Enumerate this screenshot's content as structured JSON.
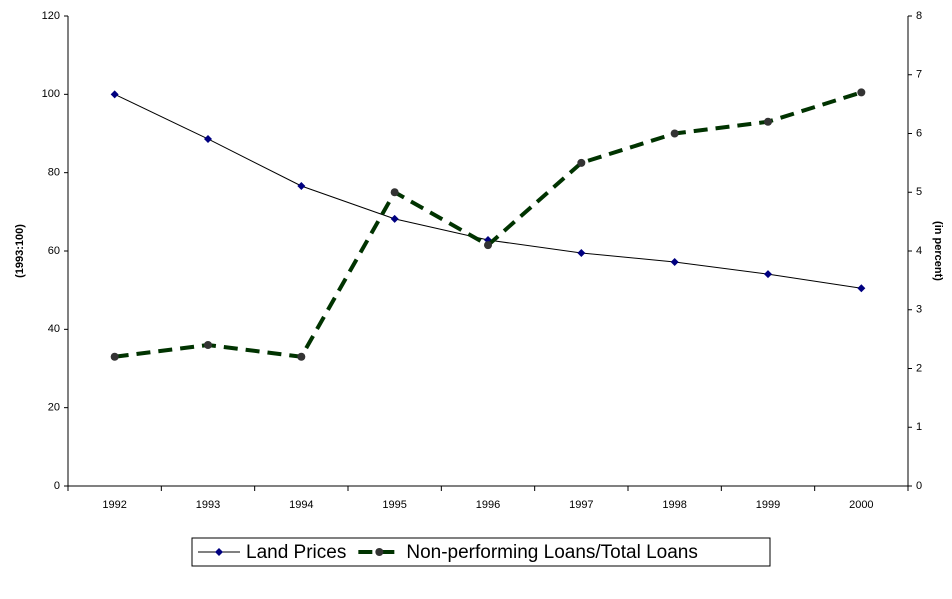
{
  "chart_data": {
    "type": "line",
    "categories": [
      "1992",
      "1993",
      "1994",
      "1995",
      "1996",
      "1997",
      "1998",
      "1999",
      "2000"
    ],
    "y_label": "(1993:100)",
    "y2_label": "(in percent)",
    "ylim": [
      0,
      120
    ],
    "yticks": [
      0,
      20,
      40,
      60,
      80,
      100,
      120
    ],
    "y2lim": [
      0,
      8
    ],
    "y2ticks": [
      0,
      1,
      2,
      3,
      4,
      5,
      6,
      7,
      8
    ],
    "grid": false,
    "legend": "bottom",
    "series": [
      {
        "name": "Land Prices",
        "color": "#000080",
        "line_color": "#000000",
        "values": [
          100,
          88.6,
          76.6,
          68.2,
          62.8,
          59.5,
          57.2,
          54.1,
          50.5
        ]
      },
      {
        "name": "Non-performing Loans/Total Loans",
        "color": "#003300",
        "axis": "y2",
        "values": [
          2.2,
          2.4,
          2.2,
          5.0,
          4.1,
          5.5,
          6.0,
          6.2,
          6.7
        ]
      }
    ]
  }
}
